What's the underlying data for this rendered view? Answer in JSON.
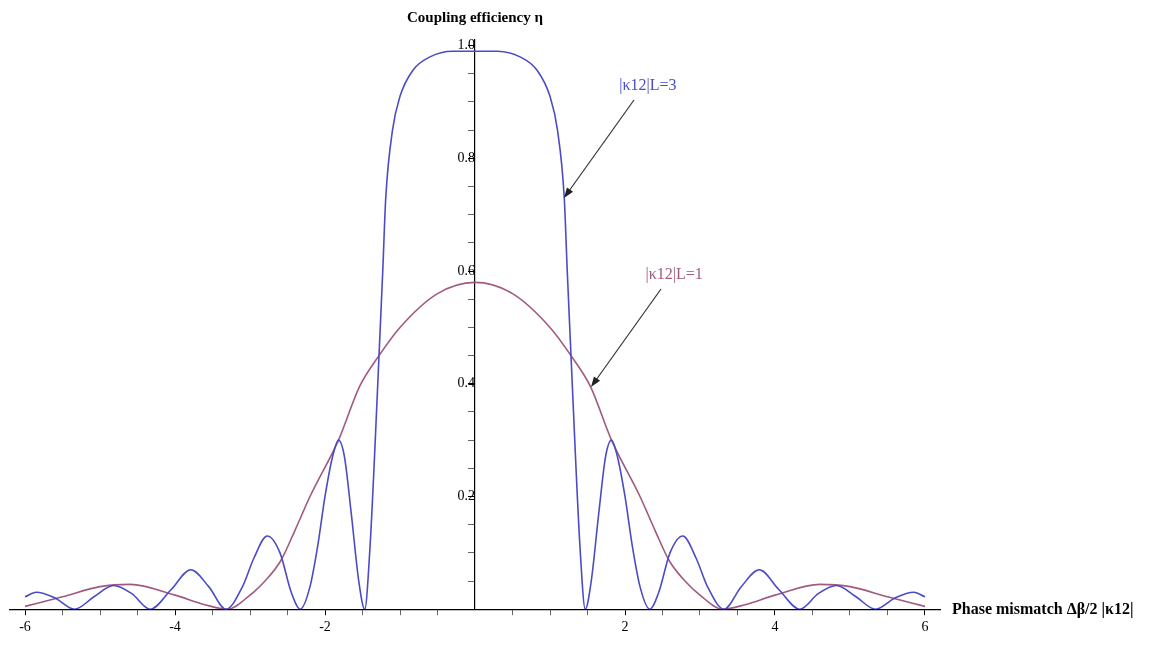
{
  "chart_data": {
    "type": "line",
    "ylabel": "Coupling efficiency η",
    "xlabel": "Phase mismatch Δβ/2 |κ12|",
    "xlim": [
      -6.2,
      6.2
    ],
    "ylim": [
      0,
      1.01
    ],
    "xticks": [
      -6,
      {
        "value": -5.5,
        "label": null
      },
      {
        "value": -5,
        "label": null
      },
      {
        "value": -4.5,
        "label": null
      },
      -4,
      {
        "value": -3.5,
        "label": null
      },
      {
        "value": -3,
        "label": null
      },
      {
        "value": -2.5,
        "label": null
      },
      -2,
      {
        "value": -1.5,
        "label": null
      },
      {
        "value": -1,
        "label": null
      },
      {
        "value": -0.5,
        "label": null
      },
      {
        "value": 0.5,
        "label": null
      },
      {
        "value": 1,
        "label": null
      },
      {
        "value": 1.5,
        "label": null
      },
      2,
      {
        "value": 2.5,
        "label": null
      },
      {
        "value": 3,
        "label": null
      },
      {
        "value": 3.5,
        "label": null
      },
      4,
      {
        "value": 4.5,
        "label": null
      },
      {
        "value": 5,
        "label": null
      },
      {
        "value": 5.5,
        "label": null
      },
      6
    ],
    "yticks": [
      {
        "value": 0.05,
        "label": null
      },
      {
        "value": 0.1,
        "label": null
      },
      {
        "value": 0.15,
        "label": null
      },
      0.2,
      {
        "value": 0.25,
        "label": null
      },
      {
        "value": 0.3,
        "label": null
      },
      {
        "value": 0.35,
        "label": null
      },
      0.4,
      {
        "value": 0.45,
        "label": null
      },
      {
        "value": 0.5,
        "label": null
      },
      {
        "value": 0.55,
        "label": null
      },
      0.6,
      {
        "value": 0.65,
        "label": null
      },
      {
        "value": 0.7,
        "label": null
      },
      {
        "value": 0.75,
        "label": null
      },
      0.8,
      {
        "value": 0.85,
        "label": null
      },
      {
        "value": 0.9,
        "label": null
      },
      {
        "value": 0.95,
        "label": null
      },
      {
        "value": 1,
        "label": "1.0"
      }
    ],
    "grid": false,
    "legend": false,
    "marker": "none",
    "line_style": "solid",
    "series": [
      {
        "name": "|κ12|L=3",
        "color": "#4b4bc6",
        "x": [
          -6,
          -5.85,
          -5.6,
          -5.34,
          -5.08,
          -4.82,
          -4.58,
          -4.33,
          -4.05,
          -3.79,
          -3.55,
          -3.32,
          -3.1,
          -2.95,
          -2.77,
          -2.6,
          -2.45,
          -2.33,
          -2.2,
          -2.1,
          -2,
          -1.9,
          -1.82,
          -1.74,
          -1.65,
          -1.55,
          -1.47,
          -1.4,
          -1.34,
          -1.28,
          -1.23,
          -1.19,
          -1.1,
          -1,
          -0.83,
          -0.6,
          -0.3,
          0,
          0.3,
          0.6,
          0.83,
          1,
          1.1,
          1.19,
          1.23,
          1.28,
          1.34,
          1.4,
          1.47,
          1.55,
          1.65,
          1.74,
          1.82,
          1.9,
          2,
          2.1,
          2.2,
          2.33,
          2.45,
          2.6,
          2.77,
          2.95,
          3.1,
          3.32,
          3.55,
          3.79,
          4.05,
          4.33,
          4.58,
          4.82,
          5.08,
          5.34,
          5.6,
          5.85,
          6
        ],
        "values": [
          0.022,
          0.03,
          0.02,
          0,
          0.022,
          0.042,
          0.028,
          0,
          0.035,
          0.07,
          0.04,
          0,
          0.04,
          0.09,
          0.13,
          0.1,
          0.03,
          0,
          0.04,
          0.11,
          0.2,
          0.27,
          0.3,
          0.27,
          0.17,
          0.05,
          0,
          0.11,
          0.27,
          0.45,
          0.6,
          0.73,
          0.85,
          0.91,
          0.956,
          0.98,
          0.99,
          0.99,
          0.99,
          0.98,
          0.956,
          0.91,
          0.85,
          0.73,
          0.6,
          0.45,
          0.27,
          0.11,
          0,
          0.05,
          0.17,
          0.27,
          0.3,
          0.27,
          0.2,
          0.11,
          0.04,
          0,
          0.03,
          0.1,
          0.13,
          0.09,
          0.04,
          0,
          0.04,
          0.07,
          0.035,
          0,
          0.028,
          0.042,
          0.022,
          0,
          0.02,
          0.03,
          0.022
        ]
      },
      {
        "name": "|κ12|L=1",
        "color": "#a05a80",
        "x": [
          -6,
          -5.5,
          -5,
          -4.6,
          -4,
          -3.6,
          -3.3,
          -3,
          -2.8,
          -2.59,
          -2.4,
          -2.2,
          -1.82,
          -1.54,
          -1.28,
          -1,
          -0.5,
          0,
          0.5,
          1,
          1.28,
          1.54,
          1.82,
          2.2,
          2.4,
          2.59,
          2.8,
          3,
          3.3,
          3.6,
          4,
          4.6,
          5,
          5.5,
          6
        ],
        "values": [
          0.005,
          0.022,
          0.04,
          0.044,
          0.025,
          0.008,
          0,
          0.025,
          0.05,
          0.086,
          0.14,
          0.2,
          0.3,
          0.395,
          0.45,
          0.5,
          0.56,
          0.58,
          0.56,
          0.5,
          0.45,
          0.395,
          0.3,
          0.2,
          0.14,
          0.086,
          0.05,
          0.025,
          0,
          0.008,
          0.025,
          0.044,
          0.04,
          0.022,
          0.005
        ]
      }
    ]
  }
}
